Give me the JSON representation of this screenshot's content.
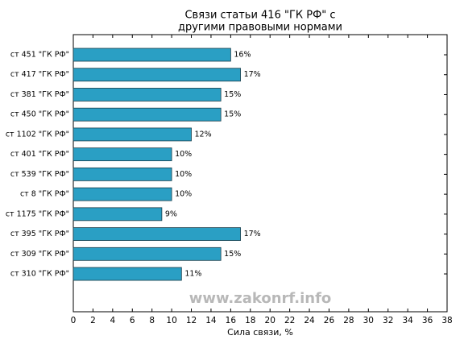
{
  "chart_data": {
    "type": "barh",
    "title": [
      "Связи статьи 416 \"ГК РФ\" с",
      "другими правовыми нормами"
    ],
    "x_label": "Сила связи, %",
    "watermark": "www.zakonrf.info",
    "categories": [
      "ст 451 \"ГК РФ\"",
      "ст 417 \"ГК РФ\"",
      "ст 381 \"ГК РФ\"",
      "ст 450 \"ГК РФ\"",
      "ст 1102 \"ГК РФ\"",
      "ст 401 \"ГК РФ\"",
      "ст 539 \"ГК РФ\"",
      "ст 8 \"ГК РФ\"",
      "ст 1175 \"ГК РФ\"",
      "ст 395 \"ГК РФ\"",
      "ст 309 \"ГК РФ\"",
      "ст 310 \"ГК РФ\""
    ],
    "values": [
      16,
      17,
      15,
      15,
      12,
      10,
      10,
      10,
      9,
      17,
      15,
      11
    ],
    "value_labels": [
      "16%",
      "17%",
      "15%",
      "15%",
      "12%",
      "10%",
      "10%",
      "10%",
      "9%",
      "17%",
      "15%",
      "11%"
    ],
    "color": "#2a9fc4",
    "xlim": [
      0,
      38
    ],
    "xticks": [
      0,
      2,
      4,
      6,
      8,
      10,
      12,
      14,
      16,
      18,
      20,
      22,
      24,
      26,
      28,
      30,
      32,
      34,
      36,
      38
    ]
  }
}
